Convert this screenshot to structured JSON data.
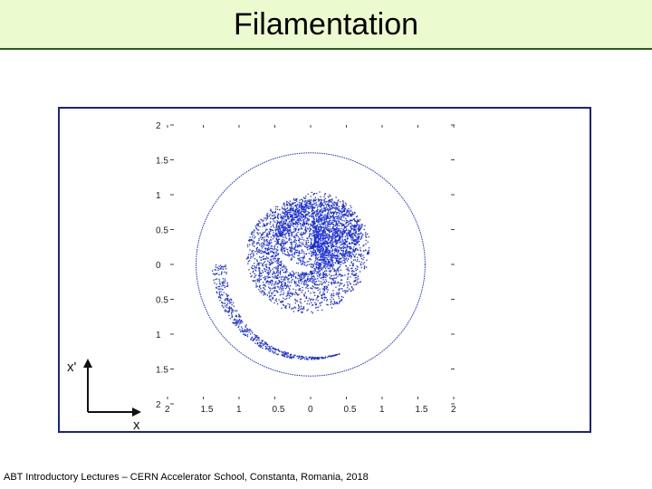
{
  "slide": {
    "title": "Filamentation",
    "footer": "ABT Introductory Lectures – CERN Accelerator School, Constanta, Romania, 2018"
  },
  "axes_labels": {
    "horizontal": "x",
    "vertical": "x'"
  },
  "chart_data": {
    "type": "scatter",
    "title": "",
    "xlabel": "x",
    "ylabel": "x'",
    "xlim": [
      -2,
      2
    ],
    "ylim": [
      -2,
      2
    ],
    "x_tick_labels": [
      "2",
      "1.5",
      "1",
      "0.5",
      "0",
      "0.5",
      "1",
      "1.5",
      "2"
    ],
    "y_tick_labels": [
      "2",
      "1.5",
      "1",
      "0.5",
      "0",
      "0.5",
      "1",
      "1.5",
      "2"
    ],
    "description_series": [
      {
        "name": "",
        "kind": "circle",
        "radius": 1.6
      },
      {
        "name": "",
        "kind": "filamented particle distribution"
      }
    ],
    "grid": false,
    "point_color": "#1a2fd6"
  }
}
